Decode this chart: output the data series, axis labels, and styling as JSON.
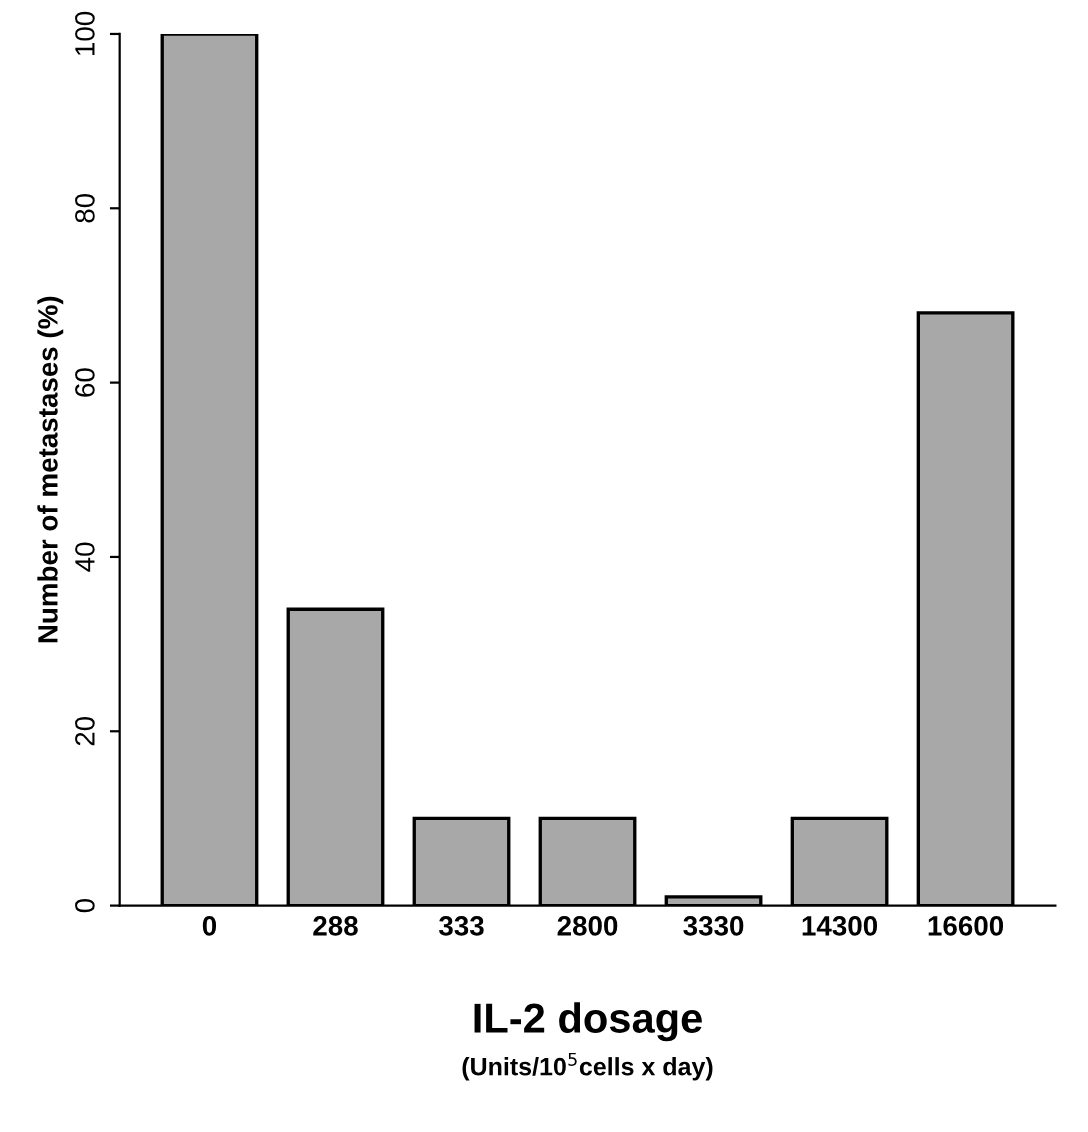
{
  "chart_data": {
    "type": "bar",
    "xlabel": "IL-2 dosage",
    "ylabel": "Number of metastases (%)",
    "annotations": [
      "(Units/10$^{5}$cells x day)"
    ],
    "categories": [
      "0",
      "288",
      "333",
      "2800",
      "3330",
      "14300",
      "16600"
    ],
    "values": [
      100,
      34,
      10,
      10,
      1,
      10,
      68
    ],
    "color": "#a8a8a8",
    "ylim": [
      0,
      100
    ],
    "yticks": [
      0,
      20,
      40,
      60,
      80,
      100
    ],
    "grid": false,
    "legend": false
  }
}
